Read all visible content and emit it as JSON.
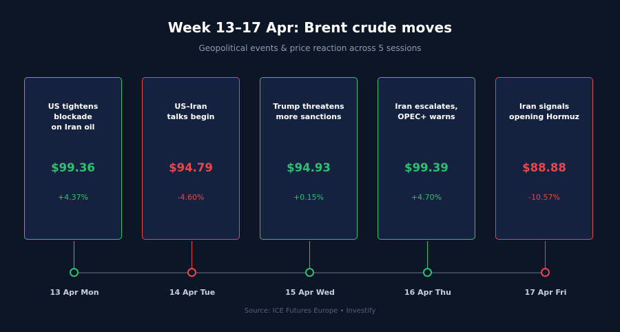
{
  "title": "Week 13–17 Apr: Brent crude moves",
  "subtitle": "Geopolitical events & price reaction across 5 sessions",
  "colors": {
    "background": "#0c1626",
    "card_fill": "#142240",
    "up": "#2fbf71",
    "down": "#e5484d",
    "axis": "#3a4556"
  },
  "events": [
    {
      "day": "13 Apr Mon",
      "headline": "US tightens blockade\non Iran oil",
      "price": "$99.36",
      "change": "+4.37%",
      "direction": "up"
    },
    {
      "day": "14 Apr Tue",
      "headline": "US–Iran\ntalks begin",
      "price": "$94.79",
      "change": "-4.60%",
      "direction": "down"
    },
    {
      "day": "15 Apr Wed",
      "headline": "Trump threatens\nmore sanctions",
      "price": "$94.93",
      "change": "+0.15%",
      "direction": "up"
    },
    {
      "day": "16 Apr Thu",
      "headline": "Iran escalates,\nOPEC+ warns",
      "price": "$99.39",
      "change": "+4.70%",
      "direction": "up"
    },
    {
      "day": "17 Apr Fri",
      "headline": "Iran signals\nopening Hormuz",
      "price": "$88.88",
      "change": "-10.57%",
      "direction": "down"
    }
  ],
  "source": "Source: ICE Futures Europe  •  Investify"
}
